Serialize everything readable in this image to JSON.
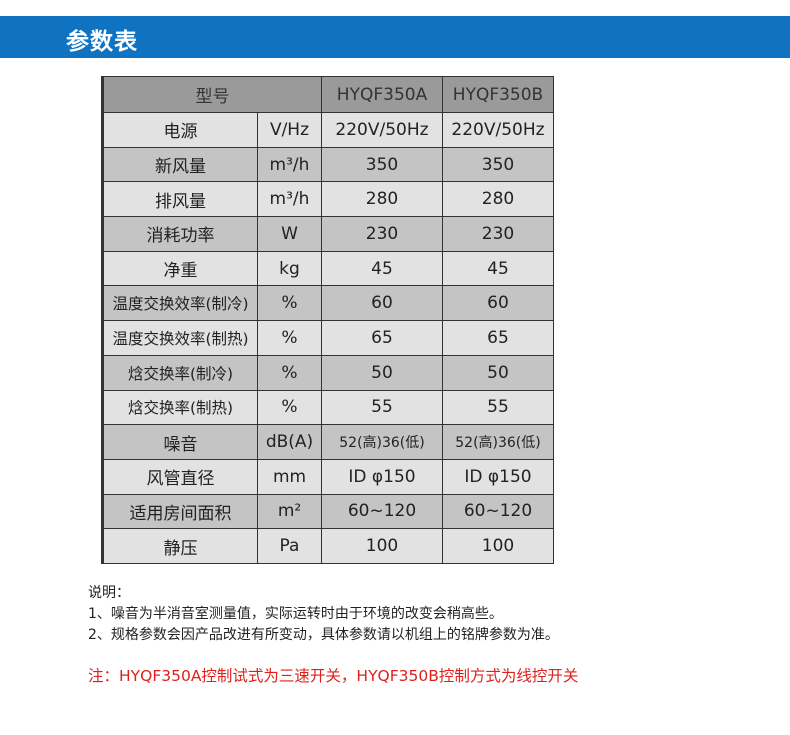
{
  "header": {
    "title": "参数表"
  },
  "table": {
    "header": {
      "label": "型号",
      "models": [
        "HYQF350A",
        "HYQF350B"
      ]
    },
    "rows": [
      {
        "name": "电源",
        "unit": "V/Hz",
        "a": "220V/50Hz",
        "b": "220V/50Hz"
      },
      {
        "name": "新风量",
        "unit": "m³/h",
        "a": "350",
        "b": "350"
      },
      {
        "name": "排风量",
        "unit": "m³/h",
        "a": "280",
        "b": "280"
      },
      {
        "name": "消耗功率",
        "unit": "W",
        "a": "230",
        "b": "230"
      },
      {
        "name": "净重",
        "unit": "kg",
        "a": "45",
        "b": "45"
      },
      {
        "name": "温度交换效率(制冷)",
        "unit": "%",
        "a": "60",
        "b": "60"
      },
      {
        "name": "温度交换效率(制热)",
        "unit": "%",
        "a": "65",
        "b": "65"
      },
      {
        "name": "焓交换率(制冷)",
        "unit": "%",
        "a": "50",
        "b": "50"
      },
      {
        "name": "焓交换率(制热)",
        "unit": "%",
        "a": "55",
        "b": "55"
      },
      {
        "name": "噪音",
        "unit": "dB(A)",
        "a": "52(高)36(低)",
        "b": "52(高)36(低)"
      },
      {
        "name": "风管直径",
        "unit": "mm",
        "a": "ID φ150",
        "b": "ID φ150"
      },
      {
        "name": "适用房间面积",
        "unit": "m²",
        "a": "60~120",
        "b": "60~120"
      },
      {
        "name": "静压",
        "unit": "Pa",
        "a": "100",
        "b": "100"
      }
    ]
  },
  "notes": {
    "title": "说明：",
    "items": [
      "1、噪音为半消音室测量值，实际运转时由于环境的改变会稍高些。",
      "2、规格参数会因产品改进有所变动，具体参数请以机组上的铭牌参数为准。"
    ],
    "red": "注：HYQF350A控制试式为三速开关，HYQF350B控制方式为线控开关",
    "red_color": "#e0201b"
  },
  "colors": {
    "banner": "#1073c2"
  }
}
